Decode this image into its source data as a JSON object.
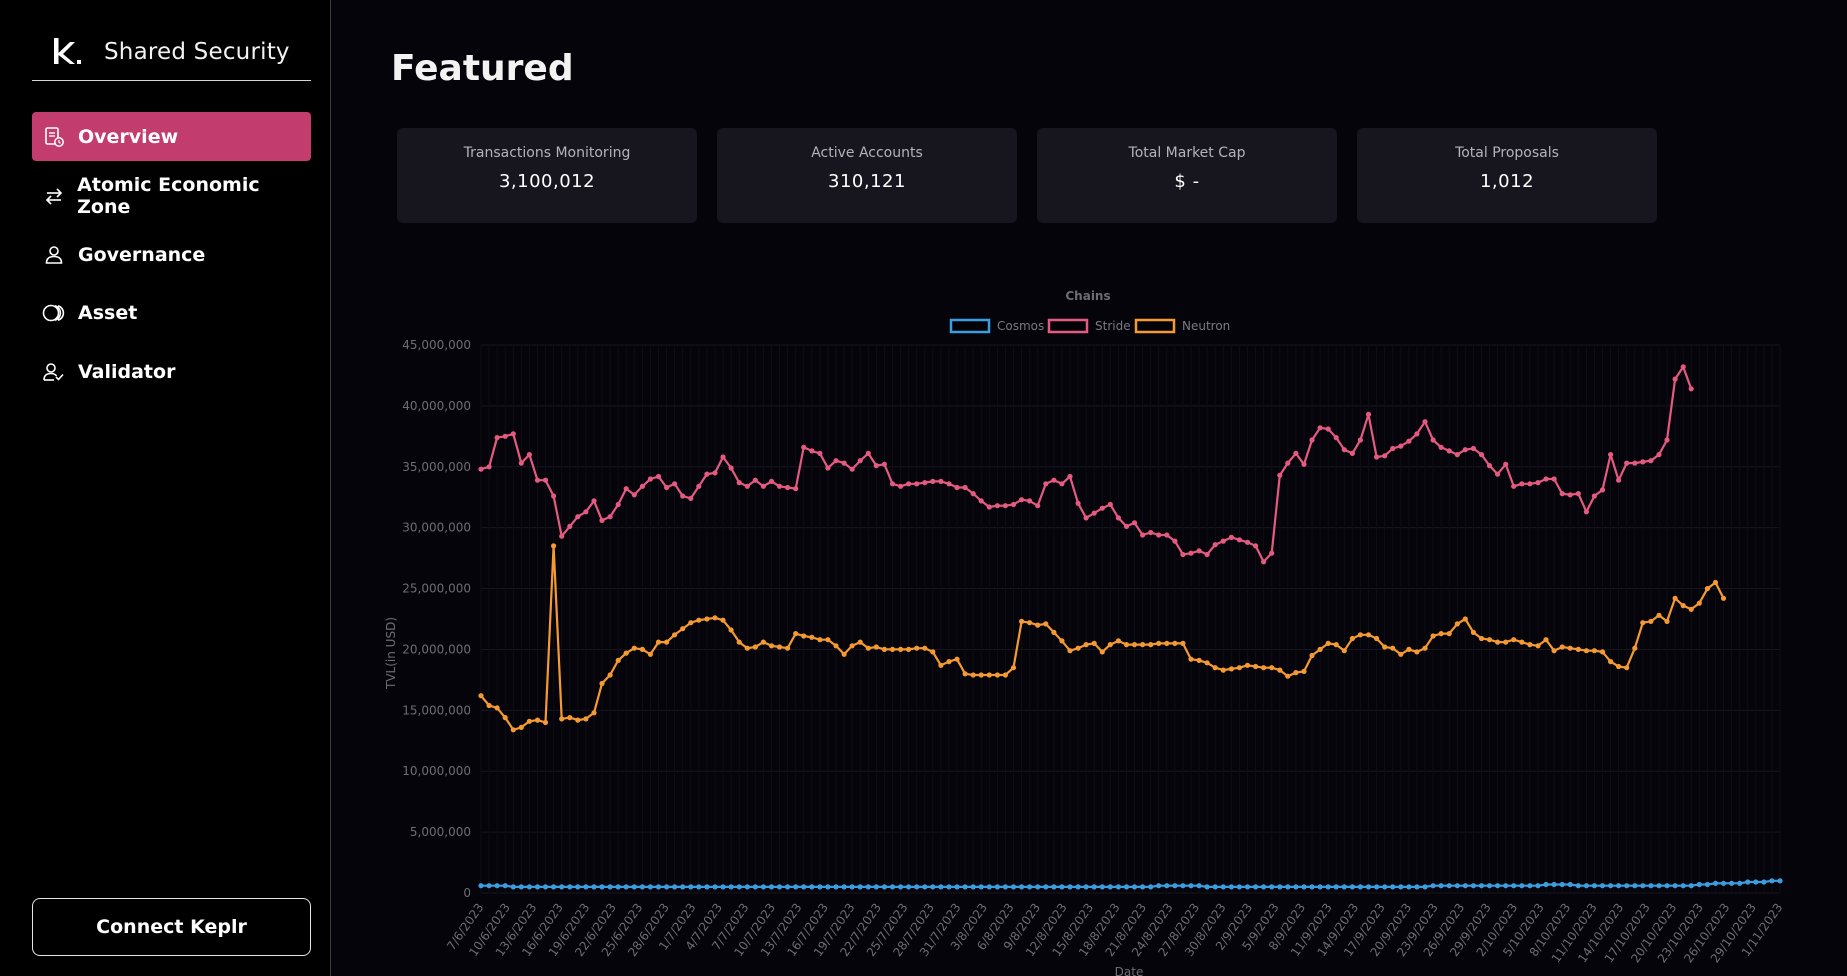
{
  "brand": {
    "title": "Shared Security"
  },
  "nav": {
    "items": [
      {
        "label": "Overview",
        "icon": "document-clock-icon",
        "active": true
      },
      {
        "label": "Atomic Economic Zone",
        "icon": "swap-arrows-icon",
        "active": false
      },
      {
        "label": "Governance",
        "icon": "person-icon",
        "active": false
      },
      {
        "label": "Asset",
        "icon": "coins-icon",
        "active": false
      },
      {
        "label": "Validator",
        "icon": "person-check-icon",
        "active": false
      }
    ],
    "connect_label": "Connect Keplr"
  },
  "main": {
    "title": "Featured",
    "stats": [
      {
        "label": "Transactions Monitoring",
        "value": "3,100,012"
      },
      {
        "label": "Active Accounts",
        "value": "310,121"
      },
      {
        "label": "Total Market Cap",
        "value": "$ -"
      },
      {
        "label": "Total Proposals",
        "value": "1,012"
      }
    ]
  },
  "colors": {
    "accent": "#c23c6e",
    "cosmos": "#3b9ee0",
    "stride": "#e45a80",
    "neutron": "#f59a33"
  },
  "chart_data": {
    "type": "line",
    "title": "Chains",
    "xlabel": "Date",
    "ylabel": "TVL(in USD)",
    "ylim": [
      0,
      45000000
    ],
    "y_ticks": [
      "0",
      "5,000,000",
      "10,000,000",
      "15,000,000",
      "20,000,000",
      "25,000,000",
      "30,000,000",
      "35,000,000",
      "40,000,000",
      "45,000,000"
    ],
    "x_tick_labels": [
      "7/6/2023",
      "10/6/2023",
      "13/6/2023",
      "16/6/2023",
      "19/6/2023",
      "22/6/2023",
      "25/6/2023",
      "28/6/2023",
      "1/7/2023",
      "4/7/2023",
      "7/7/2023",
      "10/7/2023",
      "13/7/2023",
      "16/7/2023",
      "19/7/2023",
      "22/7/2023",
      "25/7/2023",
      "28/7/2023",
      "31/7/2023",
      "3/8/2023",
      "6/8/2023",
      "9/8/2023",
      "12/8/2023",
      "15/8/2023",
      "18/8/2023",
      "21/8/2023",
      "24/8/2023",
      "27/8/2023",
      "30/8/2023",
      "2/9/2023",
      "5/9/2023",
      "8/9/2023",
      "11/9/2023",
      "14/9/2023",
      "17/9/2023",
      "20/9/2023",
      "23/9/2023",
      "26/9/2023",
      "29/9/2023",
      "2/10/2023",
      "5/10/2023",
      "8/10/2023",
      "11/10/2023",
      "14/10/2023",
      "17/10/2023",
      "20/10/2023",
      "23/10/2023",
      "26/10/2023",
      "29/10/2023",
      "1/11/2023"
    ],
    "x_start": "7/6/2023",
    "x_end": "1/11/2023",
    "legend_position": "top",
    "grid": true,
    "series": [
      {
        "name": "Cosmos",
        "color": "#3b9ee0",
        "values": [
          0.6,
          0.6,
          0.6,
          0.6,
          0.5,
          0.5,
          0.5,
          0.5,
          0.5,
          0.5,
          0.5,
          0.5,
          0.5,
          0.5,
          0.5,
          0.5,
          0.5,
          0.5,
          0.5,
          0.5,
          0.5,
          0.5,
          0.5,
          0.5,
          0.5,
          0.5,
          0.5,
          0.5,
          0.5,
          0.5,
          0.5,
          0.5,
          0.5,
          0.5,
          0.5,
          0.5,
          0.5,
          0.5,
          0.5,
          0.5,
          0.5,
          0.5,
          0.5,
          0.5,
          0.5,
          0.5,
          0.5,
          0.5,
          0.5,
          0.5,
          0.5,
          0.5,
          0.5,
          0.5,
          0.5,
          0.5,
          0.5,
          0.5,
          0.5,
          0.5,
          0.5,
          0.5,
          0.5,
          0.5,
          0.5,
          0.5,
          0.5,
          0.5,
          0.5,
          0.5,
          0.5,
          0.5,
          0.5,
          0.5,
          0.5,
          0.5,
          0.5,
          0.5,
          0.5,
          0.5,
          0.5,
          0.5,
          0.5,
          0.5,
          0.6,
          0.6,
          0.6,
          0.6,
          0.6,
          0.6,
          0.5,
          0.5,
          0.5,
          0.5,
          0.5,
          0.5,
          0.5,
          0.5,
          0.5,
          0.5,
          0.5,
          0.5,
          0.5,
          0.5,
          0.5,
          0.5,
          0.5,
          0.5,
          0.5,
          0.5,
          0.5,
          0.5,
          0.5,
          0.5,
          0.5,
          0.5,
          0.5,
          0.5,
          0.6,
          0.6,
          0.6,
          0.6,
          0.6,
          0.6,
          0.6,
          0.6,
          0.6,
          0.6,
          0.6,
          0.6,
          0.6,
          0.6,
          0.7,
          0.7,
          0.7,
          0.7,
          0.6,
          0.6,
          0.6,
          0.6,
          0.6,
          0.6,
          0.6,
          0.6,
          0.6,
          0.6,
          0.6,
          0.6,
          0.6,
          0.6,
          0.6,
          0.7,
          0.7,
          0.8,
          0.8,
          0.8,
          0.8,
          0.9,
          0.9,
          0.9,
          1.0,
          1.0
        ]
      },
      {
        "name": "Stride",
        "color": "#e45a80",
        "values": [
          34.8,
          35.0,
          37.4,
          37.5,
          37.7,
          35.3,
          36.0,
          33.9,
          33.9,
          32.6,
          29.3,
          30.1,
          30.9,
          31.3,
          32.2,
          30.6,
          30.9,
          31.9,
          33.2,
          32.7,
          33.4,
          34.0,
          34.2,
          33.3,
          33.6,
          32.6,
          32.4,
          33.4,
          34.4,
          34.5,
          35.8,
          34.9,
          33.7,
          33.4,
          33.9,
          33.4,
          33.8,
          33.4,
          33.3,
          33.2,
          36.6,
          36.3,
          36.1,
          34.9,
          35.5,
          35.3,
          34.8,
          35.5,
          36.1,
          35.1,
          35.2,
          33.6,
          33.4,
          33.6,
          33.6,
          33.7,
          33.8,
          33.8,
          33.6,
          33.3,
          33.3,
          32.8,
          32.2,
          31.7,
          31.8,
          31.8,
          31.9,
          32.3,
          32.2,
          31.8,
          33.6,
          33.9,
          33.6,
          34.2,
          32.0,
          30.8,
          31.2,
          31.6,
          31.9,
          30.8,
          30.1,
          30.4,
          29.4,
          29.6,
          29.4,
          29.4,
          28.9,
          27.8,
          27.9,
          28.1,
          27.8,
          28.6,
          28.9,
          29.2,
          29.0,
          28.8,
          28.5,
          27.2,
          27.9,
          34.3,
          35.3,
          36.1,
          35.2,
          37.2,
          38.2,
          38.1,
          37.4,
          36.4,
          36.1,
          37.2,
          39.3,
          35.8,
          35.9,
          36.5,
          36.7,
          37.1,
          37.7,
          38.7,
          37.2,
          36.6,
          36.3,
          36.0,
          36.4,
          36.5,
          36.0,
          35.1,
          34.4,
          35.2,
          33.4,
          33.6,
          33.6,
          33.7,
          34.0,
          34.0,
          32.8,
          32.7,
          32.8,
          31.3,
          32.6,
          33.1,
          36.0,
          33.9,
          35.3,
          35.3,
          35.4,
          35.5,
          36.0,
          37.2,
          42.2,
          43.2,
          41.4
        ]
      },
      {
        "name": "Neutron",
        "color": "#f59a33",
        "values": [
          16.2,
          15.4,
          15.2,
          14.4,
          13.4,
          13.6,
          14.1,
          14.2,
          14.0,
          28.5,
          14.3,
          14.4,
          14.2,
          14.3,
          14.8,
          17.2,
          17.9,
          19.1,
          19.7,
          20.1,
          20.0,
          19.6,
          20.6,
          20.6,
          21.2,
          21.7,
          22.2,
          22.4,
          22.5,
          22.6,
          22.4,
          21.6,
          20.6,
          20.1,
          20.2,
          20.6,
          20.3,
          20.2,
          20.1,
          21.3,
          21.1,
          21.0,
          20.8,
          20.8,
          20.3,
          19.6,
          20.3,
          20.6,
          20.1,
          20.2,
          20.0,
          20.0,
          20.0,
          20.0,
          20.1,
          20.1,
          19.8,
          18.7,
          19.0,
          19.2,
          18.0,
          17.9,
          17.9,
          17.9,
          17.9,
          17.9,
          18.5,
          22.3,
          22.2,
          22.0,
          22.1,
          21.4,
          20.7,
          19.9,
          20.1,
          20.4,
          20.5,
          19.8,
          20.4,
          20.7,
          20.4,
          20.4,
          20.4,
          20.4,
          20.5,
          20.5,
          20.5,
          20.5,
          19.2,
          19.1,
          18.9,
          18.5,
          18.3,
          18.4,
          18.5,
          18.7,
          18.6,
          18.5,
          18.5,
          18.3,
          17.8,
          18.1,
          18.2,
          19.5,
          20.0,
          20.5,
          20.4,
          19.9,
          20.9,
          21.2,
          21.2,
          20.9,
          20.2,
          20.1,
          19.6,
          20.0,
          19.8,
          20.1,
          21.1,
          21.3,
          21.3,
          22.1,
          22.5,
          21.4,
          20.9,
          20.8,
          20.6,
          20.6,
          20.8,
          20.6,
          20.4,
          20.3,
          20.8,
          19.9,
          20.2,
          20.1,
          20.0,
          19.9,
          19.9,
          19.8,
          19.0,
          18.6,
          18.5,
          20.1,
          22.2,
          22.3,
          22.8,
          22.3,
          24.2,
          23.6,
          23.3,
          23.8,
          25.0,
          25.5,
          24.2
        ]
      }
    ]
  }
}
